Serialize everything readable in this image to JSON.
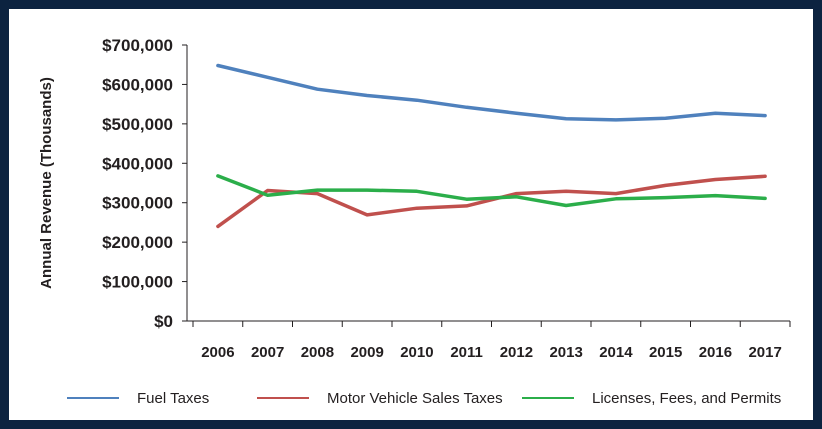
{
  "chart_data": {
    "type": "line",
    "title": "",
    "xlabel": "",
    "ylabel": "Annual Revenue (Thousands)",
    "x": [
      "2006",
      "2007",
      "2008",
      "2009",
      "2010",
      "2011",
      "2012",
      "2013",
      "2014",
      "2015",
      "2016",
      "2017"
    ],
    "ylim": [
      0,
      700000
    ],
    "yticks": [
      0,
      100000,
      200000,
      300000,
      400000,
      500000,
      600000,
      700000
    ],
    "ytick_labels": [
      "$0",
      "$100,000",
      "$200,000",
      "$300,000",
      "$400,000",
      "$500,000",
      "$600,000",
      "$700,000"
    ],
    "grid": false,
    "legend_position": "bottom",
    "series": [
      {
        "name": "Fuel Taxes",
        "color": "#4f81bd",
        "values": [
          648000,
          618000,
          588000,
          572000,
          560000,
          542000,
          527000,
          513000,
          510000,
          514000,
          527000,
          521000
        ]
      },
      {
        "name": "Motor Vehicle Sales Taxes",
        "color": "#c0504d",
        "values": [
          240000,
          331000,
          323000,
          269000,
          286000,
          292000,
          323000,
          329000,
          323000,
          344000,
          359000,
          367000
        ]
      },
      {
        "name": "Licenses, Fees, and Permits",
        "color": "#2bae4a",
        "values": [
          368000,
          319000,
          332000,
          332000,
          329000,
          309000,
          315000,
          293000,
          310000,
          313000,
          318000,
          311000
        ]
      }
    ]
  }
}
